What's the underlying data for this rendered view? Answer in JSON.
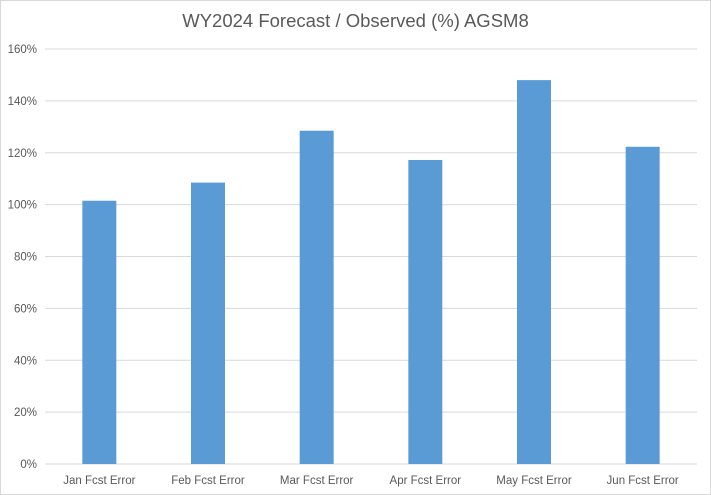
{
  "chart_data": {
    "type": "bar",
    "title": "WY2024 Forecast / Observed (%) AGSM8",
    "categories": [
      "Jan Fcst Error",
      "Feb Fcst Error",
      "Mar Fcst Error",
      "Apr Fcst Error",
      "May Fcst Error",
      "Jun Fcst Error"
    ],
    "values": [
      101.5,
      108.5,
      128.5,
      117.2,
      148.0,
      122.3
    ],
    "ylim": [
      0,
      160
    ],
    "yticks": [
      "0%",
      "20%",
      "40%",
      "60%",
      "80%",
      "100%",
      "120%",
      "140%",
      "160%"
    ],
    "xlabel": "",
    "ylabel": "",
    "grid": true,
    "legend": "none",
    "bar_color": "#5b9bd5",
    "grid_color": "#d9d9d9"
  }
}
